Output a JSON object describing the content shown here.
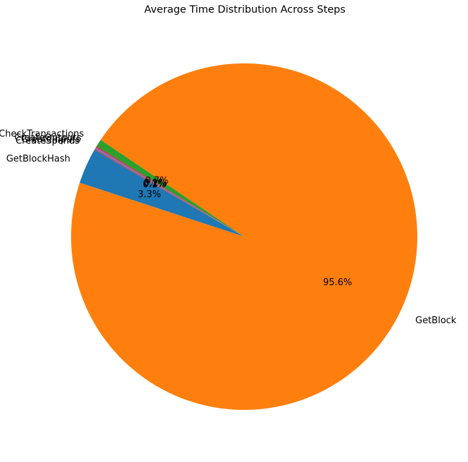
{
  "chart_data": {
    "type": "pie",
    "title": "Average Time Distribution Across Steps",
    "slices": [
      {
        "label": "GetBlockHash",
        "value": 3.3,
        "pct_label": "3.3%",
        "color": "#1f77b4"
      },
      {
        "label": "GetBlock",
        "value": 95.6,
        "pct_label": "95.6%",
        "color": "#ff7f0e"
      },
      {
        "label": "CheckTransactions",
        "value": 0.7,
        "pct_label": "0.7%",
        "color": "#2ca02c"
      },
      {
        "label": "CreateOutputs",
        "value": 0.1,
        "pct_label": "0.1%",
        "color": "#d62728"
      },
      {
        "label": "CreateInputs",
        "value": 0.2,
        "pct_label": "0.2%",
        "color": "#9467bd"
      },
      {
        "label": "CreateSpends",
        "value": 0.1,
        "pct_label": "0.1%",
        "color": "#8c564b"
      }
    ],
    "start_angle_deg": 150,
    "direction": "counterclockwise"
  }
}
